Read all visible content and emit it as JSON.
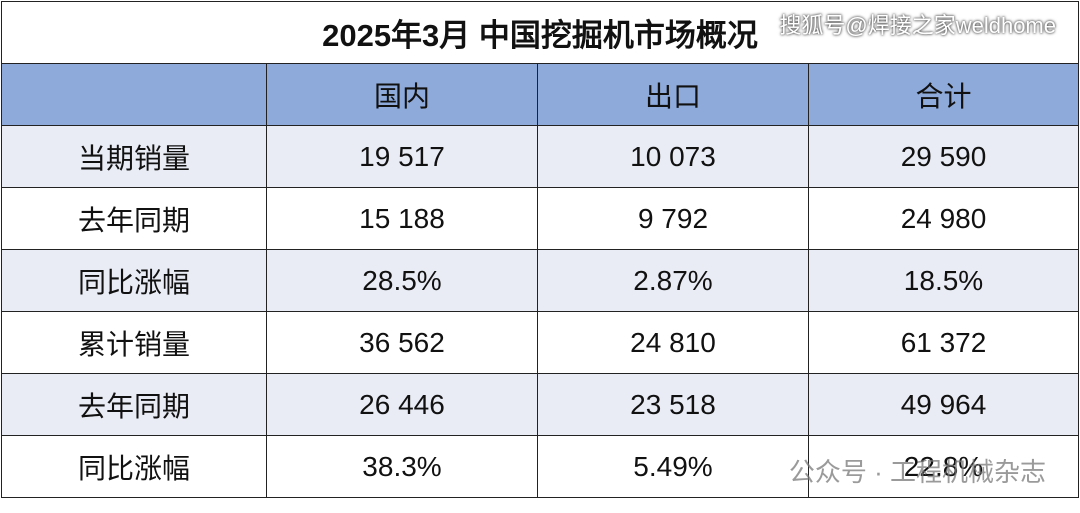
{
  "title": "2025年3月 中国挖掘机市场概况",
  "header": [
    "国内",
    "出口",
    "合计"
  ],
  "rows": [
    {
      "label": "当期销量",
      "cells": [
        "19 517",
        "10 073",
        "29 590"
      ]
    },
    {
      "label": "去年同期",
      "cells": [
        "15 188",
        "9 792",
        "24 980"
      ]
    },
    {
      "label": "同比涨幅",
      "cells": [
        "28.5%",
        "2.87%",
        "18.5%"
      ]
    },
    {
      "label": "累计销量",
      "cells": [
        "36 562",
        "24 810",
        "61 372"
      ]
    },
    {
      "label": "去年同期",
      "cells": [
        "26 446",
        "23 518",
        "49 964"
      ]
    },
    {
      "label": "同比涨幅",
      "cells": [
        "38.3%",
        "5.49%",
        "22.8%"
      ]
    }
  ],
  "watermarks": [
    "搜狐号@焊接之家weldhome",
    "公众号 · 工程机械杂志"
  ]
}
